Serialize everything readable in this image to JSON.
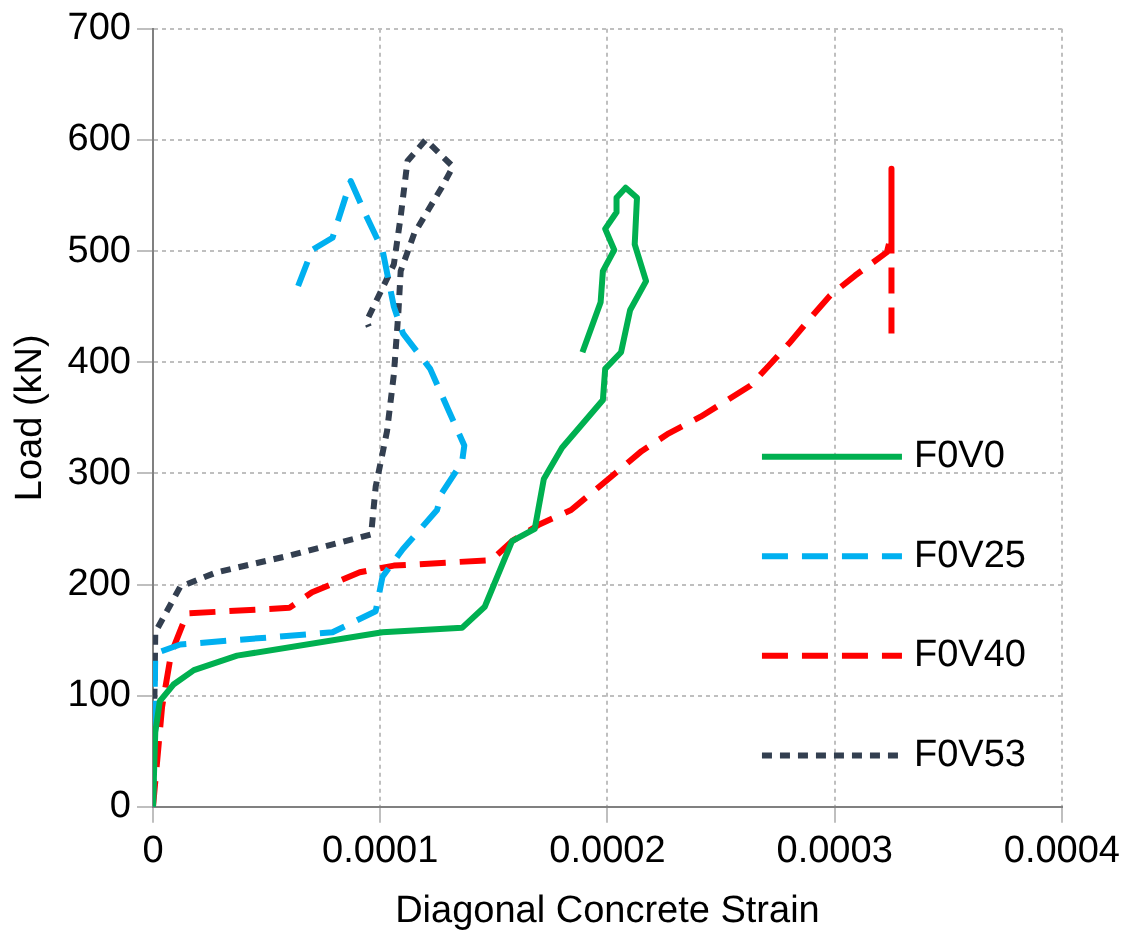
{
  "chart_data": {
    "type": "line",
    "xlabel": "Diagonal Concrete Strain",
    "ylabel": "Load (kN)",
    "xlim": [
      0,
      0.0004
    ],
    "xticks": [
      0,
      0.0001,
      0.0002,
      0.0003,
      0.0004
    ],
    "ylim": [
      0,
      700
    ],
    "yticks": [
      0,
      100,
      200,
      300,
      400,
      500,
      600,
      700
    ],
    "grid": true,
    "legend": "right",
    "marker": "none",
    "series": [
      {
        "name": "F0V0",
        "color": "#00b050",
        "line_style": "solid",
        "x": [
          0,
          1e-06,
          3e-06,
          9e-06,
          1.8e-05,
          3.7e-05,
          0.000101,
          0.000136,
          0.000146,
          0.000158,
          0.000168,
          0.000172,
          0.00018,
          0.000198,
          0.000199,
          0.000206,
          0.00021,
          0.000217,
          0.000212,
          0.000213,
          0.000208,
          0.000204,
          0.000204,
          0.000199,
          0.000203,
          0.000198,
          0.000197,
          0.000189
        ],
        "values": [
          0,
          67,
          95,
          110,
          123,
          136,
          157,
          161,
          180,
          239,
          250,
          295,
          323,
          366,
          394,
          409,
          447,
          473,
          506,
          548,
          557,
          548,
          535,
          520,
          501,
          482,
          454,
          409
        ]
      },
      {
        "name": "F0V25",
        "color": "#00b0f0",
        "line_style": "dashed",
        "x": [
          0,
          1e-06,
          1.2e-05,
          7.9e-05,
          9.8e-05,
          0.000101,
          0.00011,
          0.000125,
          0.000127,
          0.000136,
          0.000137,
          0.00013,
          0.000122,
          0.00011,
          0.000106,
          0.000101,
          9.4e-05,
          8.7e-05,
          7.9e-05,
          7e-05,
          6.3e-05
        ],
        "values": [
          0,
          138,
          146,
          157,
          176,
          207,
          232,
          267,
          282,
          310,
          325,
          357,
          394,
          426,
          450,
          501,
          531,
          563,
          512,
          501,
          464
        ]
      },
      {
        "name": "F0V40",
        "color": "#ff0000",
        "line_style": "dashed",
        "x": [
          0,
          4e-06,
          8e-06,
          1.5e-05,
          6e-05,
          7e-05,
          9.1e-05,
          0.000106,
          0.000149,
          0.000158,
          0.00017,
          0.000184,
          0.000204,
          0.000215,
          0.000227,
          0.000241,
          0.000263,
          0.00028,
          0.000289,
          0.000298,
          0.000309,
          0.000323,
          0.000325,
          0.000325,
          0.000325
        ],
        "values": [
          0,
          90,
          138,
          174,
          179,
          193,
          211,
          217,
          222,
          239,
          254,
          267,
          301,
          320,
          336,
          351,
          379,
          417,
          439,
          460,
          478,
          499,
          516,
          574,
          424
        ]
      },
      {
        "name": "F0V53",
        "color": "#333f50",
        "line_style": "dotted",
        "x": [
          0,
          1e-06,
          1.2e-05,
          2.8e-05,
          6e-05,
          9.6e-05,
          9.8e-05,
          0.000103,
          0.000106,
          0.000108,
          0.000109,
          0.000115,
          0.000127,
          0.000132,
          0.00012,
          0.000112,
          0.000109,
          0.000106,
          9.4e-05,
          9.5e-05
        ],
        "values": [
          0,
          157,
          198,
          211,
          226,
          245,
          288,
          338,
          389,
          445,
          482,
          516,
          557,
          576,
          600,
          581,
          531,
          488,
          437,
          432
        ]
      }
    ]
  }
}
